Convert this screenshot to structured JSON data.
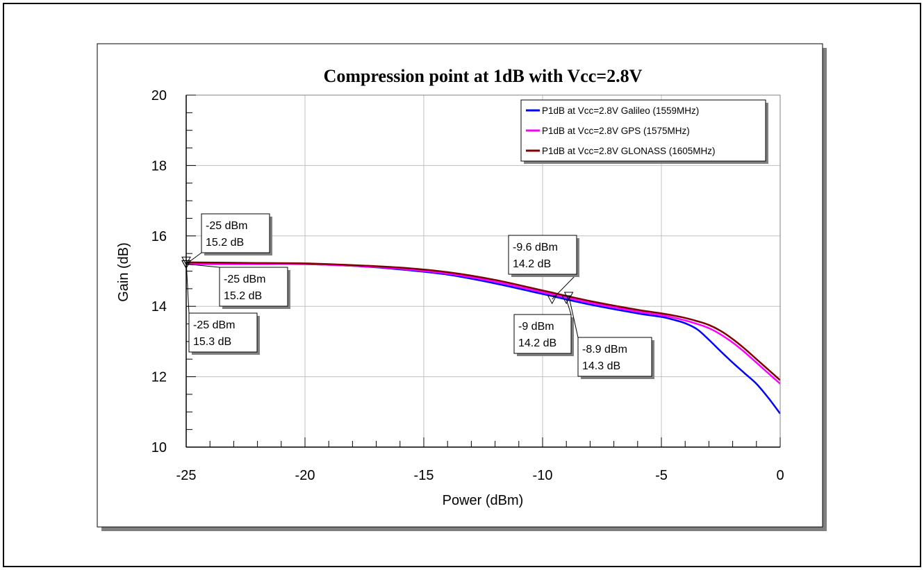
{
  "chart_data": {
    "type": "line",
    "title": "Compression point at 1dB with Vcc=2.8V",
    "xlabel": "Power (dBm)",
    "ylabel": "Gain (dB)",
    "xlim": [
      -25,
      0
    ],
    "ylim": [
      10,
      20
    ],
    "xticks": [
      -25,
      -20,
      -15,
      -10,
      -5,
      0
    ],
    "xtick_labels": [
      "-25",
      "-20",
      "-15",
      "-10",
      "-5",
      "0"
    ],
    "yticks": [
      10,
      12,
      14,
      16,
      18,
      20
    ],
    "ytick_labels": [
      "10",
      "12",
      "14",
      "16",
      "18",
      "20"
    ],
    "grid": true,
    "legend_position": "top-right",
    "series": [
      {
        "name": "P1dB at Vcc=2.8V Galileo (1559MHz)",
        "color": "#0000ff",
        "x": [
          -25,
          -22,
          -20,
          -18,
          -16,
          -14,
          -12,
          -10,
          -8,
          -6,
          -5,
          -4.5,
          -4,
          -3.5,
          -3,
          -2.5,
          -2,
          -1.5,
          -1,
          -0.5,
          0
        ],
        "y": [
          15.2,
          15.2,
          15.2,
          15.15,
          15.05,
          14.9,
          14.65,
          14.35,
          14.05,
          13.8,
          13.7,
          13.62,
          13.52,
          13.35,
          13.05,
          12.72,
          12.4,
          12.1,
          11.8,
          11.4,
          10.95
        ]
      },
      {
        "name": "P1dB at Vcc=2.8V GPS (1575MHz)",
        "color": "#ff00ff",
        "x": [
          -25,
          -22,
          -20,
          -18,
          -16,
          -14,
          -12,
          -10,
          -8,
          -6,
          -5,
          -4.5,
          -4,
          -3.5,
          -3,
          -2.5,
          -2,
          -1.5,
          -1,
          -0.5,
          0
        ],
        "y": [
          15.2,
          15.2,
          15.2,
          15.15,
          15.07,
          14.93,
          14.7,
          14.4,
          14.1,
          13.85,
          13.75,
          13.68,
          13.6,
          13.5,
          13.38,
          13.2,
          12.97,
          12.7,
          12.4,
          12.1,
          11.8
        ]
      },
      {
        "name": "P1dB at Vcc=2.8V GLONASS (1605MHz)",
        "color": "#800000",
        "x": [
          -25,
          -22,
          -20,
          -18,
          -16,
          -14,
          -12,
          -10,
          -8,
          -6,
          -5,
          -4.5,
          -4,
          -3.5,
          -3,
          -2.5,
          -2,
          -1.5,
          -1,
          -0.5,
          0
        ],
        "y": [
          15.25,
          15.23,
          15.22,
          15.17,
          15.1,
          14.97,
          14.75,
          14.45,
          14.15,
          13.9,
          13.8,
          13.74,
          13.67,
          13.58,
          13.47,
          13.3,
          13.07,
          12.8,
          12.5,
          12.2,
          11.9
        ]
      }
    ],
    "markers": [
      {
        "x": -25,
        "y": 15.2
      },
      {
        "x": -25,
        "y": 15.2
      },
      {
        "x": -25,
        "y": 15.3
      },
      {
        "x": -9.6,
        "y": 14.2
      },
      {
        "x": -9,
        "y": 14.2
      },
      {
        "x": -8.9,
        "y": 14.3
      }
    ],
    "annotations": [
      {
        "line1": "-25 dBm",
        "line2": "15.2 dB"
      },
      {
        "line1": "-25 dBm",
        "line2": "15.2 dB"
      },
      {
        "line1": "-25 dBm",
        "line2": "15.3 dB"
      },
      {
        "line1": "-9.6 dBm",
        "line2": "14.2 dB"
      },
      {
        "line1": "-9 dBm",
        "line2": "14.2 dB"
      },
      {
        "line1": "-8.9 dBm",
        "line2": "14.3 dB"
      }
    ]
  }
}
